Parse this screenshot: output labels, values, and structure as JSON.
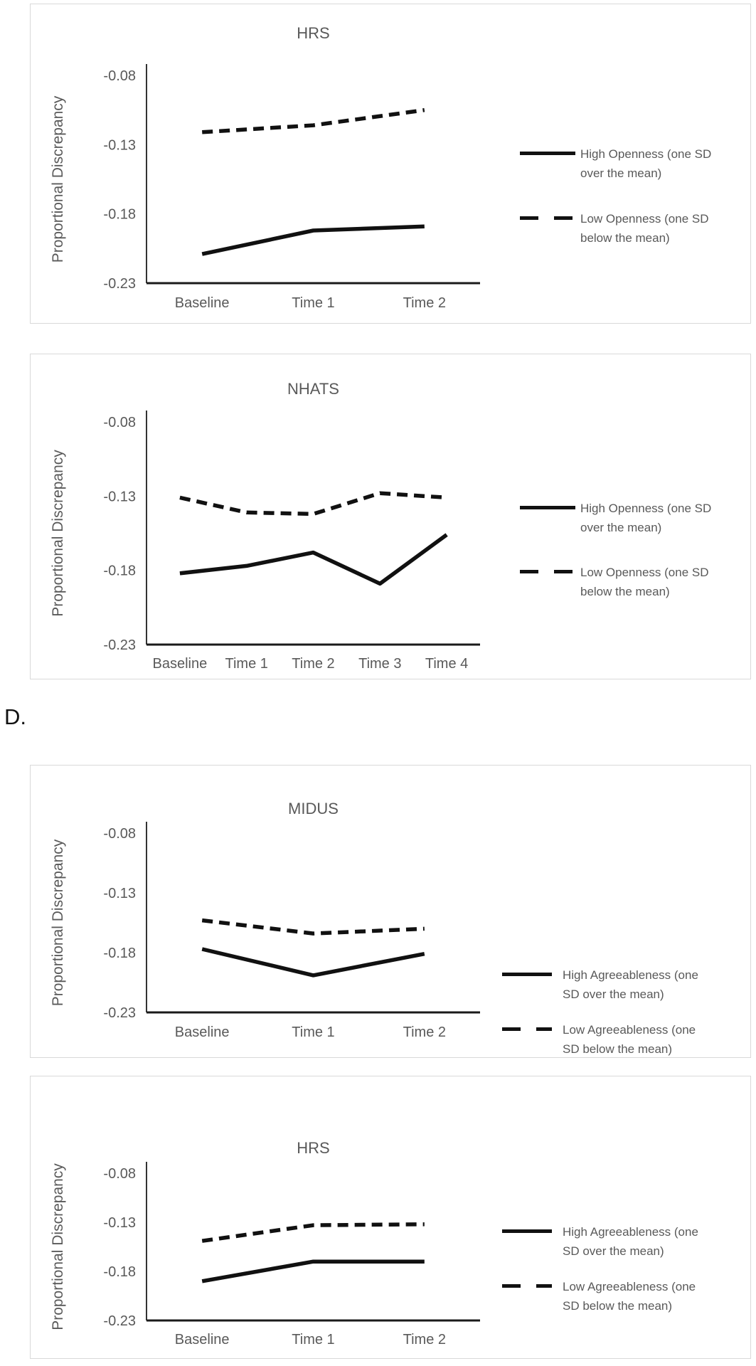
{
  "section_label": "D.",
  "styles": {
    "line_color": "#111111",
    "text_color": "#595959",
    "axis_color": "#333333",
    "panel_border": "#d9d9d9",
    "background": "#ffffff"
  },
  "chart_data": [
    {
      "type": "line",
      "title": "HRS",
      "ylabel": "Proportional Discrepancy",
      "categories": [
        "Baseline",
        "Time 1",
        "Time 2"
      ],
      "yticks": [
        "-0.08",
        "-0.13",
        "-0.18",
        "-0.23"
      ],
      "ylim": [
        -0.23,
        -0.08
      ],
      "grid": false,
      "legend_position": "right",
      "series": [
        {
          "name": "High Openness (one SD over the mean)",
          "legend_line1": "High Openness (one SD",
          "legend_line2": "over the mean)",
          "style": "solid",
          "values": [
            -0.209,
            -0.192,
            -0.189
          ]
        },
        {
          "name": "Low Openness (one SD below the mean)",
          "legend_line1": "Low Openness (one SD",
          "legend_line2": "below the mean)",
          "style": "dashed",
          "values": [
            -0.121,
            -0.116,
            -0.105
          ]
        }
      ]
    },
    {
      "type": "line",
      "title": "NHATS",
      "ylabel": "Proportional Discrepancy",
      "categories": [
        "Baseline",
        "Time 1",
        "Time 2",
        "Time 3",
        "Time 4"
      ],
      "yticks": [
        "-0.08",
        "-0.13",
        "-0.18",
        "-0.23"
      ],
      "ylim": [
        -0.23,
        -0.08
      ],
      "grid": false,
      "legend_position": "right",
      "series": [
        {
          "name": "High Openness (one SD over the mean)",
          "legend_line1": "High Openness (one SD",
          "legend_line2": "over the mean)",
          "style": "solid",
          "values": [
            -0.182,
            -0.177,
            -0.168,
            -0.189,
            -0.156
          ]
        },
        {
          "name": "Low Openness (one SD below the mean)",
          "legend_line1": "Low Openness (one SD",
          "legend_line2": "below the mean)",
          "style": "dashed",
          "values": [
            -0.131,
            -0.141,
            -0.142,
            -0.128,
            -0.131
          ]
        }
      ]
    },
    {
      "type": "line",
      "title": "MIDUS",
      "ylabel": "Proportional Discrepancy",
      "categories": [
        "Baseline",
        "Time 1",
        "Time 2"
      ],
      "yticks": [
        "-0.08",
        "-0.13",
        "-0.18",
        "-0.23"
      ],
      "ylim": [
        -0.23,
        -0.08
      ],
      "grid": false,
      "legend_position": "right",
      "series": [
        {
          "name": "High Agreeableness (one SD over the mean)",
          "legend_line1": "High Agreeableness (one",
          "legend_line2": "SD over the mean)",
          "style": "solid",
          "values": [
            -0.177,
            -0.199,
            -0.181
          ]
        },
        {
          "name": "Low Agreeableness (one SD below the mean)",
          "legend_line1": "Low Agreeableness (one",
          "legend_line2": "SD below the mean)",
          "style": "dashed",
          "values": [
            -0.153,
            -0.164,
            -0.16
          ]
        }
      ]
    },
    {
      "type": "line",
      "title": "HRS",
      "ylabel": "Proportional Discrepancy",
      "categories": [
        "Baseline",
        "Time 1",
        "Time 2"
      ],
      "yticks": [
        "-0.08",
        "-0.13",
        "-0.18",
        "-0.23"
      ],
      "ylim": [
        -0.23,
        -0.08
      ],
      "grid": false,
      "legend_position": "right",
      "series": [
        {
          "name": "High Agreeableness (one SD over the mean)",
          "legend_line1": "High Agreeableness (one",
          "legend_line2": "SD over the mean)",
          "style": "solid",
          "values": [
            -0.19,
            -0.17,
            -0.17
          ]
        },
        {
          "name": "Low Agreeableness (one SD below the mean)",
          "legend_line1": "Low Agreeableness (one",
          "legend_line2": "SD below the mean)",
          "style": "dashed",
          "values": [
            -0.149,
            -0.133,
            -0.132
          ]
        }
      ]
    }
  ]
}
